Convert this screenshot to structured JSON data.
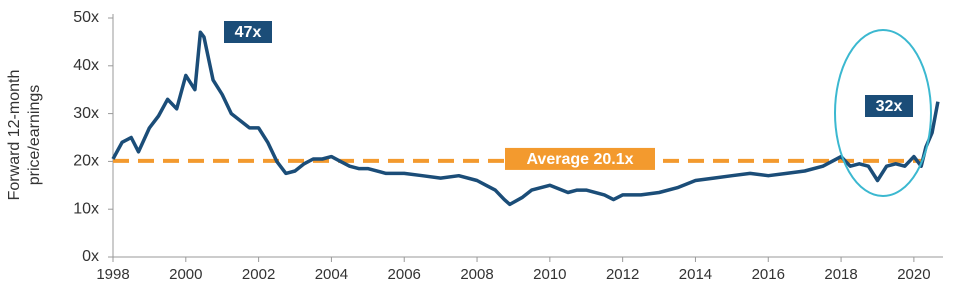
{
  "chart_data": {
    "type": "line",
    "ylabel": [
      "Forward 12-month",
      "price/earnings"
    ],
    "x": [
      1998.0,
      1998.25,
      1998.5,
      1998.7,
      1999.0,
      1999.25,
      1999.5,
      1999.75,
      2000.0,
      2000.25,
      2000.4,
      2000.5,
      2000.75,
      2001.0,
      2001.25,
      2001.5,
      2001.75,
      2002.0,
      2002.25,
      2002.5,
      2002.75,
      2003.0,
      2003.25,
      2003.5,
      2003.75,
      2004.0,
      2004.25,
      2004.5,
      2004.75,
      2005.0,
      2005.5,
      2006.0,
      2006.5,
      2007.0,
      2007.5,
      2008.0,
      2008.25,
      2008.5,
      2008.75,
      2008.9,
      2009.25,
      2009.5,
      2010.0,
      2010.5,
      2010.75,
      2011.0,
      2011.5,
      2011.75,
      2012.0,
      2012.5,
      2013.0,
      2013.5,
      2014.0,
      2014.5,
      2015.0,
      2015.5,
      2016.0,
      2016.5,
      2017.0,
      2017.5,
      2018.0,
      2018.25,
      2018.5,
      2018.75,
      2019.0,
      2019.25,
      2019.5,
      2019.75,
      2020.0,
      2020.2,
      2020.33,
      2020.5,
      2020.66
    ],
    "values": [
      20.5,
      24,
      25,
      22,
      27,
      29.5,
      33,
      31,
      38,
      35,
      47,
      46,
      37,
      34,
      30,
      28.5,
      27,
      27,
      24,
      20,
      17.5,
      18,
      19.5,
      20.5,
      20.5,
      21,
      20,
      19,
      18.5,
      18.5,
      17.5,
      17.5,
      17,
      16.5,
      17,
      16,
      15,
      14,
      12,
      11,
      12.5,
      14,
      15,
      13.5,
      14,
      14,
      13,
      12,
      13,
      13,
      13.5,
      14.5,
      16,
      16.5,
      17,
      17.5,
      17,
      17.5,
      18,
      19,
      21,
      19,
      19.5,
      19,
      16,
      19,
      19.5,
      19,
      21,
      19,
      23,
      26,
      32.5
    ],
    "color": "#1b4d78",
    "xlim": [
      1998,
      2020.8
    ],
    "xticks": [
      1998,
      2000,
      2002,
      2004,
      2006,
      2008,
      2010,
      2012,
      2014,
      2016,
      2018,
      2020
    ],
    "ylim": [
      0,
      50
    ],
    "yticks": [
      {
        "value": 0,
        "label": "0x"
      },
      {
        "value": 10,
        "label": "10x"
      },
      {
        "value": 20,
        "label": "20x"
      },
      {
        "value": 30,
        "label": "30x"
      },
      {
        "value": 40,
        "label": "40x"
      },
      {
        "value": 50,
        "label": "50x"
      }
    ],
    "reference_line": {
      "value": 20.1,
      "label": "Average 20.1x",
      "color": "#f39a2e"
    },
    "annotations": [
      "47x",
      "32x"
    ],
    "highlight_color": "#3bb8d0"
  }
}
